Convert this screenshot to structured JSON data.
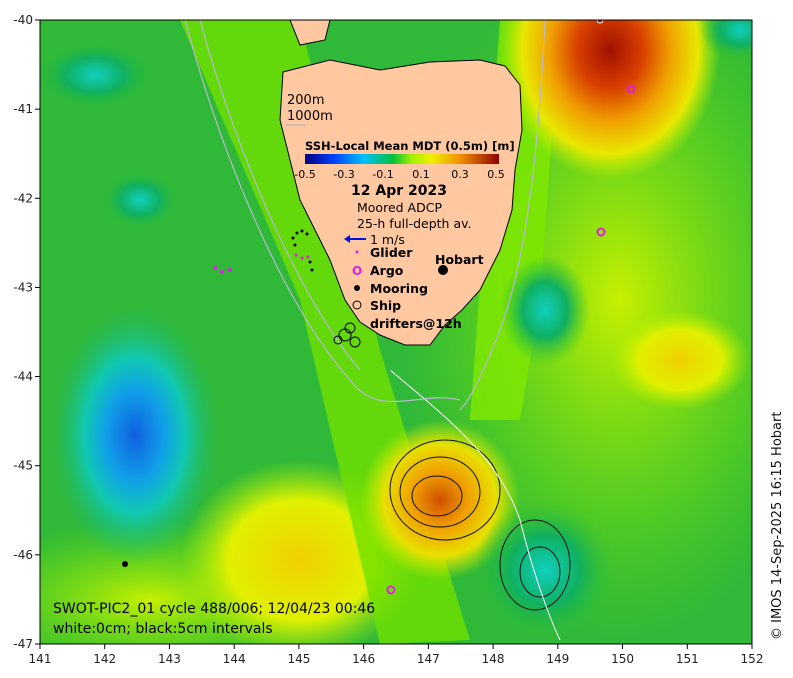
{
  "map": {
    "colorbar": {
      "title": "SSH-Local Mean MDT (0.5m) [m]",
      "ticks": [
        "-0.5",
        "-0.3",
        "-0.1",
        "0.1",
        "0.3",
        "0.5"
      ]
    },
    "depth_legend": [
      "200m",
      "1000m"
    ],
    "date": "12 Apr 2023",
    "adcp_label": "Moored ADCP",
    "adcp_sub": "25-h full-depth av.",
    "vector_scale": "1 m/s",
    "legend": {
      "glider": "Glider",
      "argo": "Argo",
      "argo_symbol": "O",
      "mooring": "Mooring",
      "ship": "Ship",
      "drifters": "drifters@12h"
    },
    "city": "Hobart",
    "swath_title": "SWOT-PIC2_01 cycle 488/006; 12/04/23 00:46",
    "contour_note": "white:0cm; black:5cm intervals",
    "credit": "© IMOS 14-Sep-2025 16:15 Hobart",
    "lon_ticks": [
      "141",
      "142",
      "143",
      "144",
      "145",
      "146",
      "147",
      "148",
      "149",
      "150",
      "151",
      "152"
    ],
    "lat_ticks": [
      "-40",
      "-41",
      "-42",
      "-43",
      "-44",
      "-45",
      "-46",
      "-47"
    ],
    "colors": {
      "land": "#ffc8a0",
      "base": "#30c030"
    }
  }
}
